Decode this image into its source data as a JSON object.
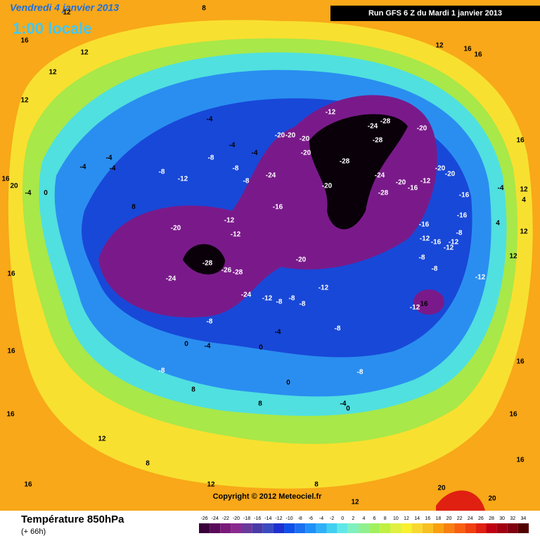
{
  "header": {
    "date": "Vendredi 4 janvier 2013",
    "time": "1:00 locale",
    "run": "Run GFS 6 Z du Mardi 1 janvier 2013"
  },
  "map": {
    "copyright": "Copyright © 2012 Meteociel.fr",
    "contour_labels": [
      16,
      12,
      12,
      12,
      8,
      12,
      12,
      16,
      16,
      12,
      12,
      16,
      12,
      16,
      16,
      16,
      20,
      20,
      16,
      16,
      16,
      16,
      12,
      12,
      12,
      8,
      8,
      8,
      8,
      -4,
      -12,
      -8,
      -8,
      -4,
      -20,
      -28,
      -24,
      -26,
      -28,
      -24,
      -12,
      -12,
      -16,
      -24,
      -20,
      -20,
      -20,
      -20,
      -24,
      -28,
      -28,
      -28,
      -24,
      -28,
      -20,
      -20,
      -16,
      -12,
      -20,
      -20,
      -12,
      -12,
      -12,
      -20,
      -20,
      -16,
      -16,
      -16,
      -12,
      -16,
      -8,
      -8,
      -12,
      -12,
      -8,
      -12,
      -12,
      16,
      -8,
      -8,
      -4,
      0,
      -4,
      0,
      -8,
      -8,
      0,
      -4,
      0,
      -4,
      0,
      20,
      16,
      -4,
      -4,
      -4,
      -4,
      -8,
      -8,
      -8,
      -8,
      -8,
      8,
      4,
      4,
      -4
    ]
  },
  "footer": {
    "title": "Température 850hPa",
    "lead": "(+ 66h)"
  },
  "legend": {
    "ticks": [
      -26,
      -24,
      -22,
      -20,
      -18,
      -16,
      -14,
      -12,
      -10,
      -8,
      -6,
      -4,
      -2,
      0,
      2,
      4,
      6,
      8,
      10,
      12,
      14,
      16,
      18,
      20,
      22,
      24,
      26,
      28,
      30,
      32,
      34
    ],
    "colors": [
      "#3a003a",
      "#5a0a5a",
      "#7a1a7a",
      "#8a2a8e",
      "#6a3a9a",
      "#4a3aa8",
      "#3a4ac0",
      "#2030d0",
      "#1050e8",
      "#1a70f0",
      "#2090f8",
      "#30b0f8",
      "#40d0f0",
      "#60e8e8",
      "#80f0c0",
      "#90f090",
      "#a0f060",
      "#c0f040",
      "#e0f040",
      "#f8f030",
      "#f8d830",
      "#f8c020",
      "#f8a010",
      "#f88010",
      "#f86010",
      "#f04010",
      "#e02010",
      "#c00010",
      "#a00010",
      "#800010",
      "#500000"
    ]
  }
}
